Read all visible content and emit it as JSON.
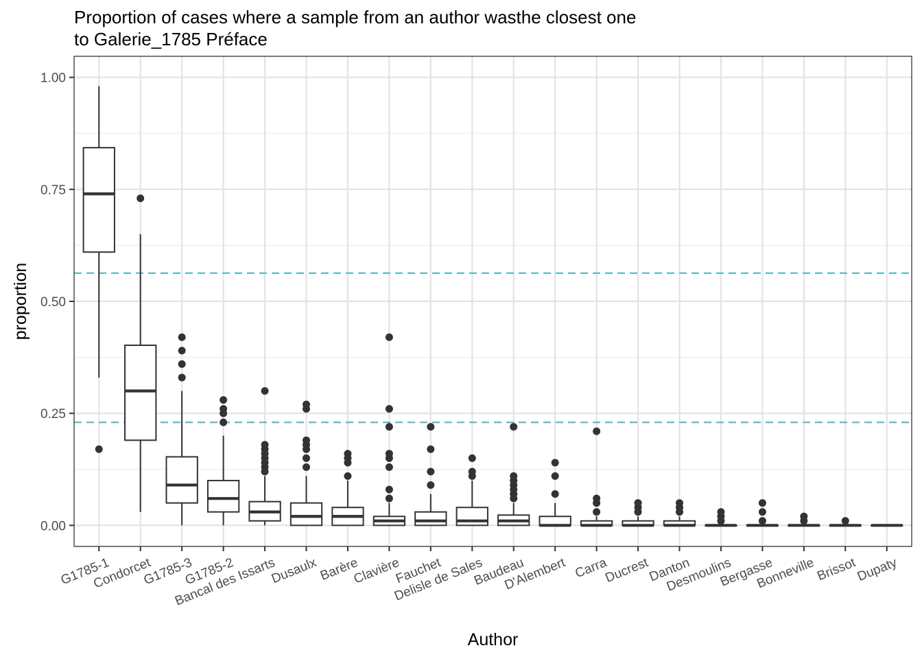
{
  "title_line1": "Proportion of cases where a sample from an author wasthe closest one",
  "title_line2": "to Galerie_1785 Préface",
  "chart_data": {
    "type": "boxplot",
    "title": "Proportion of cases where a sample from an author wasthe closest one to Galerie_1785 Préface",
    "xlabel": "Author",
    "ylabel": "proportion",
    "ylim": [
      -0.047,
      1.047
    ],
    "yticks": [
      0.0,
      0.25,
      0.5,
      0.75,
      1.0
    ],
    "ytick_labels": [
      "0.00",
      "0.25",
      "0.50",
      "0.75",
      "1.00"
    ],
    "grid": true,
    "reference_lines": [
      {
        "y": 0.563,
        "style": "dashed",
        "color": "#5bbcc6"
      },
      {
        "y": 0.23,
        "style": "dashed",
        "color": "#5bbcc6"
      }
    ],
    "categories": [
      "G1785-1",
      "Condorcet",
      "G1785-3",
      "G1785-2",
      "Bancal des Issarts",
      "Dusaulx",
      "Barère",
      "Clavière",
      "Fauchet",
      "Delisle de Sales",
      "Baudeau",
      "D'Alembert",
      "Carra",
      "Ducrest",
      "Danton",
      "Desmoulins",
      "Bergasse",
      "Bonneville",
      "Brissot",
      "Dupaty"
    ],
    "boxes": [
      {
        "min": 0.33,
        "q1": 0.61,
        "median": 0.74,
        "q3": 0.843,
        "max": 0.98,
        "outliers": [
          0.17
        ]
      },
      {
        "min": 0.03,
        "q1": 0.19,
        "median": 0.3,
        "q3": 0.402,
        "max": 0.65,
        "outliers": [
          0.73
        ]
      },
      {
        "min": 0.0,
        "q1": 0.05,
        "median": 0.09,
        "q3": 0.153,
        "max": 0.3,
        "outliers": [
          0.33,
          0.36,
          0.39,
          0.42
        ]
      },
      {
        "min": 0.0,
        "q1": 0.03,
        "median": 0.06,
        "q3": 0.1,
        "max": 0.2,
        "outliers": [
          0.23,
          0.25,
          0.26,
          0.28
        ]
      },
      {
        "min": 0.0,
        "q1": 0.01,
        "median": 0.03,
        "q3": 0.053,
        "max": 0.11,
        "outliers": [
          0.12,
          0.13,
          0.14,
          0.15,
          0.16,
          0.17,
          0.18,
          0.3
        ]
      },
      {
        "min": 0.0,
        "q1": 0.0,
        "median": 0.02,
        "q3": 0.05,
        "max": 0.11,
        "outliers": [
          0.13,
          0.15,
          0.17,
          0.18,
          0.19,
          0.26,
          0.27
        ]
      },
      {
        "min": 0.0,
        "q1": 0.0,
        "median": 0.02,
        "q3": 0.04,
        "max": 0.1,
        "outliers": [
          0.11,
          0.14,
          0.15,
          0.16
        ]
      },
      {
        "min": 0.0,
        "q1": 0.0,
        "median": 0.01,
        "q3": 0.02,
        "max": 0.05,
        "outliers": [
          0.06,
          0.08,
          0.13,
          0.15,
          0.16,
          0.22,
          0.26,
          0.42
        ]
      },
      {
        "min": 0.0,
        "q1": 0.0,
        "median": 0.01,
        "q3": 0.03,
        "max": 0.07,
        "outliers": [
          0.09,
          0.12,
          0.17,
          0.22
        ]
      },
      {
        "min": 0.0,
        "q1": 0.0,
        "median": 0.01,
        "q3": 0.04,
        "max": 0.1,
        "outliers": [
          0.11,
          0.12,
          0.15
        ]
      },
      {
        "min": 0.0,
        "q1": 0.0,
        "median": 0.01,
        "q3": 0.023,
        "max": 0.05,
        "outliers": [
          0.06,
          0.07,
          0.08,
          0.09,
          0.1,
          0.11,
          0.22
        ]
      },
      {
        "min": 0.0,
        "q1": 0.0,
        "median": 0.0,
        "q3": 0.02,
        "max": 0.05,
        "outliers": [
          0.07,
          0.11,
          0.14
        ]
      },
      {
        "min": 0.0,
        "q1": 0.0,
        "median": 0.0,
        "q3": 0.01,
        "max": 0.02,
        "outliers": [
          0.03,
          0.05,
          0.06,
          0.21
        ]
      },
      {
        "min": 0.0,
        "q1": 0.0,
        "median": 0.0,
        "q3": 0.01,
        "max": 0.02,
        "outliers": [
          0.03,
          0.04,
          0.05
        ]
      },
      {
        "min": 0.0,
        "q1": 0.0,
        "median": 0.0,
        "q3": 0.01,
        "max": 0.02,
        "outliers": [
          0.03,
          0.04,
          0.05
        ]
      },
      {
        "min": 0.0,
        "q1": 0.0,
        "median": 0.0,
        "q3": 0.0,
        "max": 0.0,
        "outliers": [
          0.01,
          0.02,
          0.03
        ]
      },
      {
        "min": 0.0,
        "q1": 0.0,
        "median": 0.0,
        "q3": 0.0,
        "max": 0.0,
        "outliers": [
          0.01,
          0.03,
          0.05
        ]
      },
      {
        "min": 0.0,
        "q1": 0.0,
        "median": 0.0,
        "q3": 0.0,
        "max": 0.0,
        "outliers": [
          0.01,
          0.02
        ]
      },
      {
        "min": 0.0,
        "q1": 0.0,
        "median": 0.0,
        "q3": 0.0,
        "max": 0.0,
        "outliers": [
          0.01
        ]
      },
      {
        "min": 0.0,
        "q1": 0.0,
        "median": 0.0,
        "q3": 0.0,
        "max": 0.0,
        "outliers": []
      }
    ]
  }
}
